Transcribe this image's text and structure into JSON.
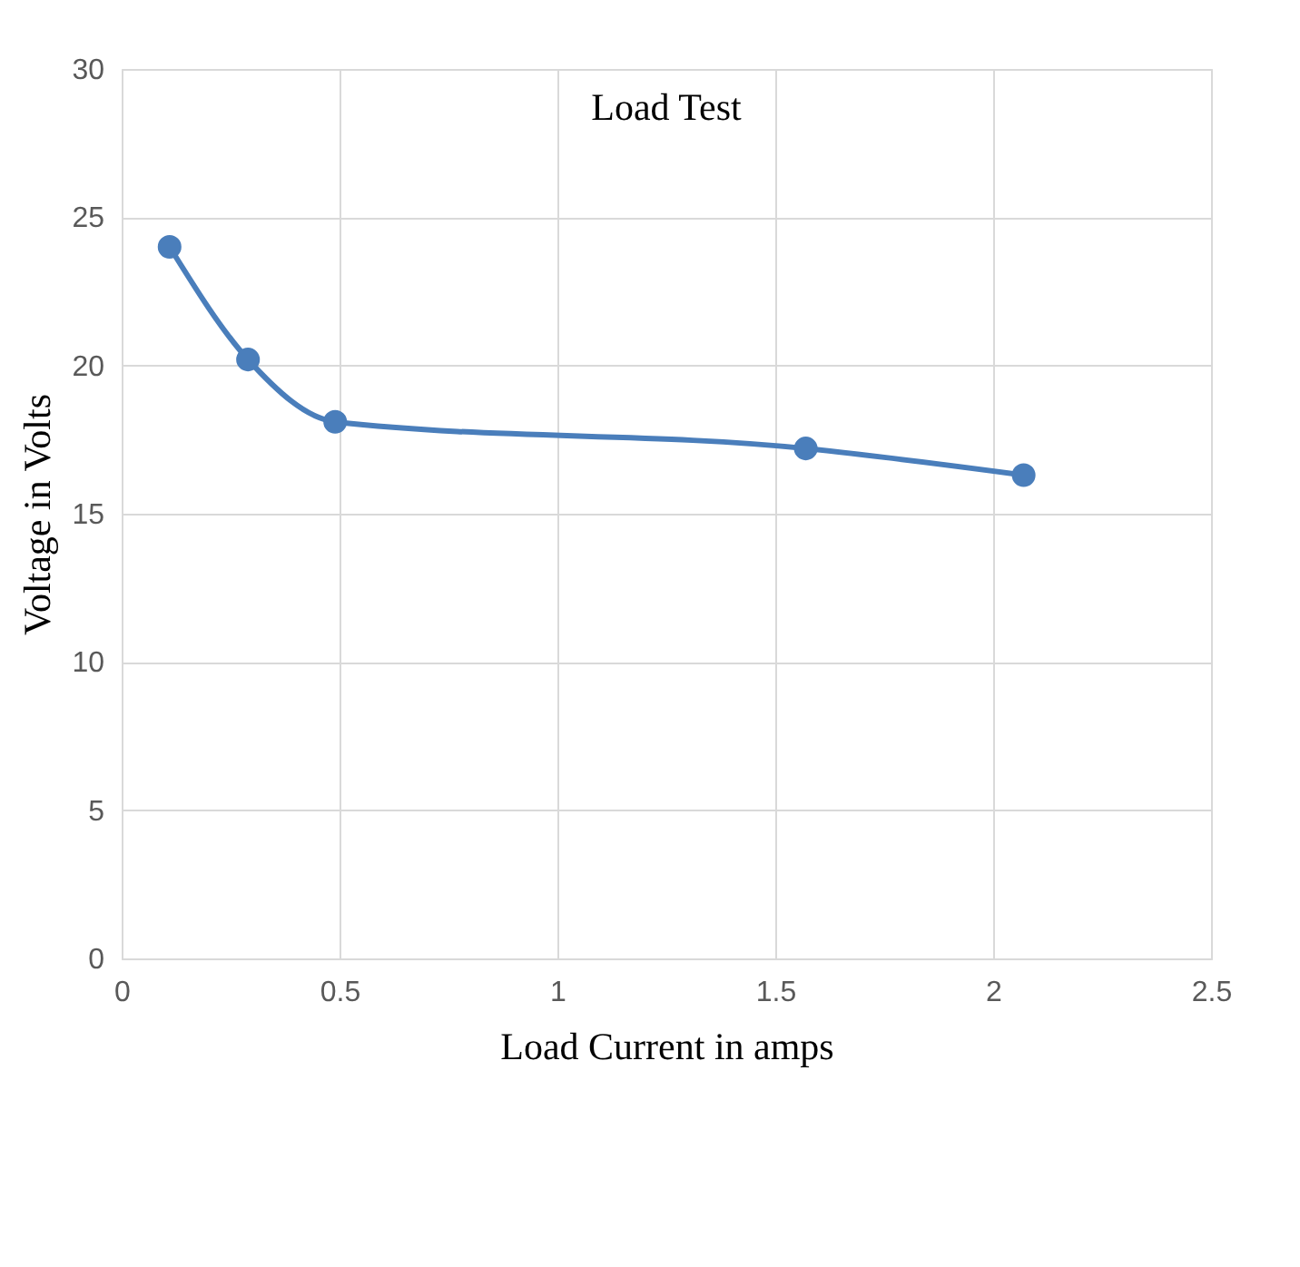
{
  "chart_data": {
    "type": "line",
    "title": "Load Test",
    "xlabel": "Load Current in amps",
    "ylabel": "Voltage in Volts",
    "x": [
      0.11,
      0.29,
      0.49,
      1.57,
      2.07
    ],
    "series": [
      {
        "color": "#4a7ebb",
        "values": [
          24,
          20.2,
          18.1,
          17.2,
          16.3
        ]
      }
    ],
    "xlim": [
      0,
      2.5
    ],
    "xticks": [
      0,
      0.5,
      1,
      1.5,
      2,
      2.5
    ],
    "ylim": [
      0,
      30
    ],
    "yticks": [
      0,
      5,
      10,
      15,
      20,
      25,
      30
    ],
    "grid": true,
    "marker": "circle",
    "line_style": "solid"
  }
}
